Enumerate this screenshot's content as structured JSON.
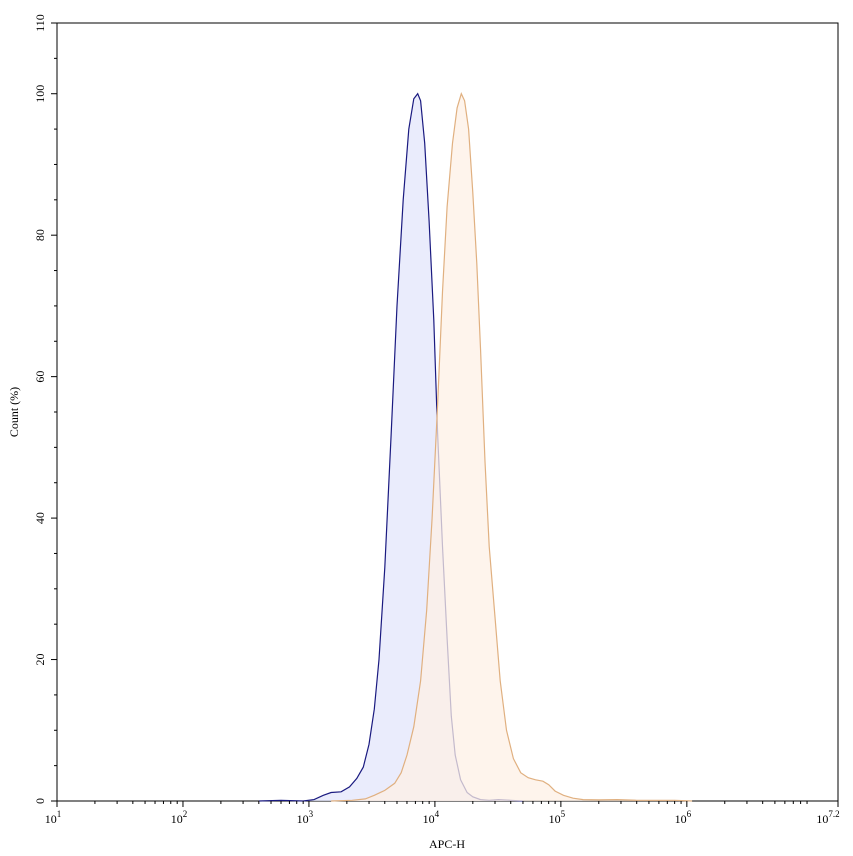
{
  "chart_data": {
    "type": "area",
    "xlabel": "APC-H",
    "ylabel": "Count (%)",
    "x_scale": "log",
    "xlim": [
      10,
      15848931.9
    ],
    "ylim": [
      0,
      110
    ],
    "grid": false,
    "legend": "none",
    "x_ticks": [
      {
        "value": 10,
        "base": "10",
        "exp": "1"
      },
      {
        "value": 100,
        "base": "10",
        "exp": "2"
      },
      {
        "value": 1000,
        "base": "10",
        "exp": "3"
      },
      {
        "value": 10000,
        "base": "10",
        "exp": "4"
      },
      {
        "value": 100000,
        "base": "10",
        "exp": "5"
      },
      {
        "value": 1000000,
        "base": "10",
        "exp": "6"
      },
      {
        "value": 15848931.9,
        "base": "10",
        "exp": "7.2"
      }
    ],
    "y_ticks": [
      0,
      20,
      40,
      60,
      80,
      100,
      110
    ],
    "series": [
      {
        "stroke": "#1a1a80",
        "fill": "#e3e5fb",
        "points": [
          [
            400,
            0
          ],
          [
            600,
            0.1
          ],
          [
            900,
            0
          ],
          [
            1100,
            0.2
          ],
          [
            1300,
            0.8
          ],
          [
            1500,
            1.2
          ],
          [
            1800,
            1.3
          ],
          [
            2100,
            2.0
          ],
          [
            2400,
            3.2
          ],
          [
            2700,
            4.8
          ],
          [
            3000,
            8.0
          ],
          [
            3300,
            13.0
          ],
          [
            3600,
            20.0
          ],
          [
            4000,
            33.0
          ],
          [
            4500,
            52.0
          ],
          [
            5000,
            70.0
          ],
          [
            5600,
            85.0
          ],
          [
            6200,
            95.0
          ],
          [
            6800,
            99.3
          ],
          [
            7300,
            100.0
          ],
          [
            7700,
            99.0
          ],
          [
            8300,
            93.0
          ],
          [
            9000,
            82.0
          ],
          [
            9800,
            68.0
          ],
          [
            10500,
            52.0
          ],
          [
            11500,
            36.0
          ],
          [
            12500,
            23.0
          ],
          [
            13500,
            12.0
          ],
          [
            14500,
            6.5
          ],
          [
            16000,
            3.0
          ],
          [
            18000,
            1.2
          ],
          [
            20000,
            0.6
          ],
          [
            23000,
            0.2
          ],
          [
            27000,
            0.1
          ],
          [
            32000,
            0.2
          ],
          [
            40000,
            0.1
          ],
          [
            50000,
            0
          ]
        ]
      },
      {
        "stroke": "#e0b080",
        "fill": "#fdf0e6",
        "points": [
          [
            1500,
            0
          ],
          [
            2200,
            0.1
          ],
          [
            2800,
            0.3
          ],
          [
            3300,
            0.8
          ],
          [
            4000,
            1.5
          ],
          [
            4800,
            2.5
          ],
          [
            5400,
            4.0
          ],
          [
            6000,
            6.5
          ],
          [
            6800,
            10.5
          ],
          [
            7700,
            17.0
          ],
          [
            8600,
            27.0
          ],
          [
            9500,
            40.0
          ],
          [
            10500,
            56.0
          ],
          [
            11500,
            72.0
          ],
          [
            12500,
            84.0
          ],
          [
            13800,
            93.0
          ],
          [
            15000,
            98.0
          ],
          [
            16200,
            100.0
          ],
          [
            17200,
            99.0
          ],
          [
            18500,
            95.0
          ],
          [
            20000,
            86.0
          ],
          [
            21500,
            76.0
          ],
          [
            23000,
            64.0
          ],
          [
            25000,
            48.0
          ],
          [
            27000,
            36.0
          ],
          [
            30000,
            26.0
          ],
          [
            33000,
            17.0
          ],
          [
            37000,
            10.0
          ],
          [
            42000,
            6.0
          ],
          [
            48000,
            4.0
          ],
          [
            55000,
            3.3
          ],
          [
            63000,
            3.0
          ],
          [
            72000,
            2.8
          ],
          [
            80000,
            2.3
          ],
          [
            90000,
            1.4
          ],
          [
            105000,
            0.8
          ],
          [
            125000,
            0.4
          ],
          [
            150000,
            0.2
          ],
          [
            200000,
            0.15
          ],
          [
            280000,
            0.2
          ],
          [
            400000,
            0.1
          ],
          [
            600000,
            0.1
          ],
          [
            800000,
            0.1
          ],
          [
            1100000,
            0
          ]
        ]
      }
    ]
  }
}
